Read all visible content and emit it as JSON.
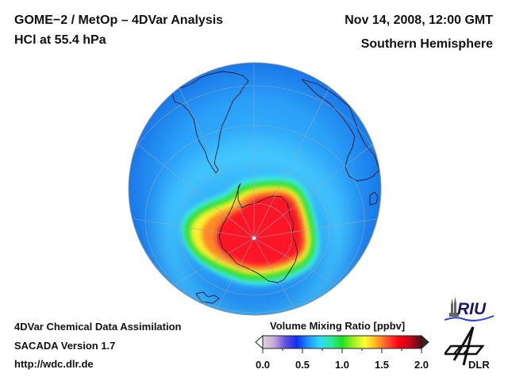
{
  "header": {
    "title": "GOME−2 / MetOp – 4DVar Analysis",
    "subtitle": "HCl at 55.4 hPa",
    "date": "Nov 14, 2008, 12:00 GMT",
    "region": "Southern Hemisphere"
  },
  "footer": {
    "line1": "4DVar Chemical Data Assimilation",
    "line2": "SACADA Version 1.7",
    "url": "http://wdc.dlr.de"
  },
  "colorbar": {
    "title": "Volume Mixing Ratio [ppbv]",
    "min": 0.0,
    "max": 2.0,
    "ticks": [
      "0.0",
      "0.5",
      "1.0",
      "1.5",
      "2.0"
    ],
    "colors": [
      "#d8d8d8",
      "#c8a8d8",
      "#6050e0",
      "#1030f0",
      "#1e90ff",
      "#30d8ff",
      "#30e8a0",
      "#20e020",
      "#a0f020",
      "#ffff30",
      "#ffb020",
      "#ff5030",
      "#ff0010",
      "#c00818",
      "#501010"
    ]
  },
  "logos": {
    "riu": "RIU",
    "dlr": "DLR"
  },
  "map": {
    "projection": "orthographic-south-polar",
    "ocean_color": "#1e88f0",
    "field_peak_value": 2.0,
    "land_outline_color": "#1a1a2a",
    "grid_color": "#9aa8b8"
  }
}
